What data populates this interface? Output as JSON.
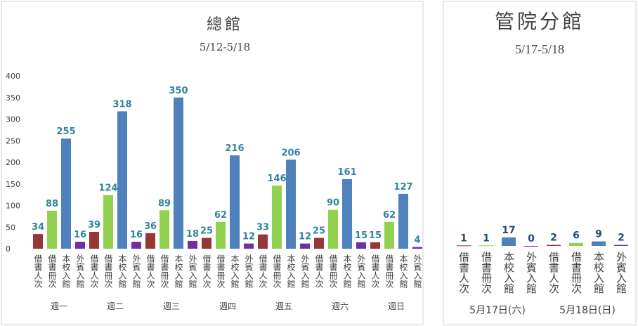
{
  "chart_data": [
    {
      "type": "bar",
      "title": "總館",
      "subtitle": "5/12-5/18",
      "categories": [
        "週一",
        "週二",
        "週三",
        "週四",
        "週五",
        "週六",
        "週日"
      ],
      "series": [
        {
          "name": "借書人次",
          "color": "#953735",
          "values": [
            34,
            39,
            36,
            25,
            33,
            25,
            15
          ]
        },
        {
          "name": "借書冊次",
          "color": "#92d050",
          "values": [
            88,
            124,
            89,
            62,
            146,
            90,
            62
          ]
        },
        {
          "name": "本校入館",
          "color": "#4f81bd",
          "values": [
            255,
            318,
            350,
            216,
            206,
            161,
            127
          ]
        },
        {
          "name": "外賓入館",
          "color": "#7030a0",
          "values": [
            16,
            16,
            18,
            12,
            12,
            15,
            4
          ]
        }
      ],
      "ylim": [
        0,
        400
      ],
      "yticks": [
        0,
        50,
        100,
        150,
        200,
        250,
        300,
        350,
        400
      ]
    },
    {
      "type": "bar",
      "title": "管院分館",
      "subtitle": "5/17-5/18",
      "categories": [
        "5月17日(六)",
        "5月18日(日)"
      ],
      "series": [
        {
          "name": "借書人次",
          "color": "#953735",
          "values": [
            1,
            2
          ]
        },
        {
          "name": "借書冊次",
          "color": "#92d050",
          "values": [
            1,
            6
          ]
        },
        {
          "name": "本校入館",
          "color": "#4f81bd",
          "values": [
            17,
            9
          ]
        },
        {
          "name": "外賓入館",
          "color": "#7030a0",
          "values": [
            0,
            2
          ]
        }
      ],
      "ylim": [
        0,
        350
      ]
    }
  ]
}
